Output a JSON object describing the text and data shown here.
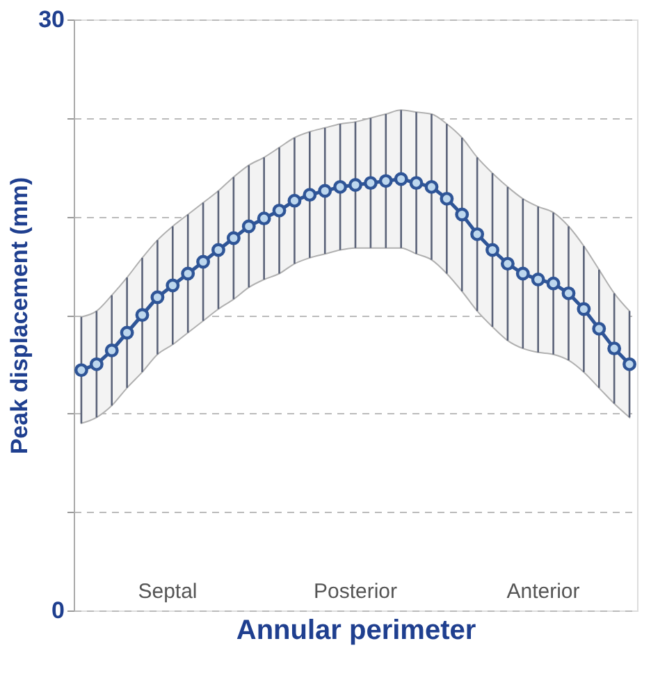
{
  "chart_data": {
    "type": "line",
    "xlabel": "Annular perimeter",
    "ylabel": "Peak displacement (mm)",
    "categories": [
      null,
      null,
      null,
      null,
      null,
      null,
      null,
      null,
      null,
      null,
      null,
      null,
      null,
      null,
      null,
      null,
      null,
      null,
      null,
      null,
      null,
      null,
      null,
      null,
      null,
      null,
      null,
      null,
      null,
      null,
      null,
      null,
      null,
      null,
      null,
      null,
      null
    ],
    "series": [
      {
        "color": "#2f5597",
        "values": [
          12.2,
          12.5,
          13.2,
          14.1,
          15.0,
          15.9,
          16.5,
          17.1,
          17.7,
          18.3,
          18.9,
          19.5,
          19.9,
          20.3,
          20.8,
          21.1,
          21.3,
          21.5,
          21.6,
          21.7,
          21.8,
          21.9,
          21.7,
          21.5,
          20.9,
          20.1,
          19.1,
          18.3,
          17.6,
          17.1,
          16.8,
          16.6,
          16.1,
          15.3,
          14.3,
          13.3,
          12.5
        ],
        "upper": [
          14.9,
          15.2,
          16.0,
          16.9,
          17.9,
          18.8,
          19.5,
          20.1,
          20.7,
          21.3,
          22.0,
          22.6,
          23.0,
          23.5,
          24.0,
          24.3,
          24.5,
          24.7,
          24.8,
          25.0,
          25.2,
          25.4,
          25.3,
          25.2,
          24.7,
          24.0,
          23.0,
          22.2,
          21.5,
          20.9,
          20.5,
          20.2,
          19.5,
          18.5,
          17.3,
          16.1,
          15.2
        ],
        "lower": [
          9.5,
          9.8,
          10.4,
          11.3,
          12.1,
          13.0,
          13.5,
          14.1,
          14.7,
          15.3,
          15.8,
          16.4,
          16.8,
          17.1,
          17.6,
          17.9,
          18.1,
          18.3,
          18.4,
          18.4,
          18.4,
          18.4,
          18.1,
          17.8,
          17.1,
          16.2,
          15.2,
          14.4,
          13.7,
          13.3,
          13.1,
          13.0,
          12.7,
          12.1,
          11.3,
          10.5,
          9.8
        ],
        "errors": [
          [
            9.5,
            14.9
          ],
          [
            9.8,
            15.2
          ],
          [
            10.4,
            16.0
          ],
          [
            11.3,
            16.9
          ],
          [
            12.1,
            17.9
          ],
          [
            13.0,
            18.8
          ],
          [
            13.5,
            19.5
          ],
          [
            14.1,
            20.1
          ],
          [
            14.7,
            20.7
          ],
          [
            15.3,
            21.3
          ],
          [
            15.8,
            22.0
          ],
          [
            16.4,
            22.6
          ],
          [
            16.8,
            23.0
          ],
          [
            17.1,
            23.5
          ],
          [
            17.6,
            24.0
          ],
          [
            17.9,
            24.3
          ],
          [
            18.1,
            24.5
          ],
          [
            18.3,
            24.7
          ],
          [
            18.4,
            24.8
          ],
          [
            18.4,
            25.0
          ],
          [
            18.4,
            25.2
          ],
          [
            18.4,
            25.4
          ],
          [
            18.1,
            25.3
          ],
          [
            17.8,
            25.2
          ],
          [
            17.1,
            24.7
          ],
          [
            16.2,
            24.0
          ],
          [
            15.2,
            23.0
          ],
          [
            14.4,
            22.2
          ],
          [
            13.7,
            21.5
          ],
          [
            13.3,
            20.9
          ],
          [
            13.1,
            20.5
          ],
          [
            13.0,
            20.2
          ],
          [
            12.7,
            19.5
          ],
          [
            12.1,
            18.5
          ],
          [
            11.3,
            17.3
          ],
          [
            10.5,
            16.1
          ],
          [
            9.8,
            15.2
          ]
        ]
      }
    ],
    "annotations": [
      "Septal",
      "Posterior",
      "Anterior"
    ],
    "ylim": [
      0,
      30
    ],
    "yticks": [
      0,
      {
        "value": 5,
        "label": null
      },
      {
        "value": 10,
        "label": null
      },
      {
        "value": 15,
        "label": null
      },
      {
        "value": 20,
        "label": null
      },
      {
        "value": 25,
        "label": null
      },
      30
    ],
    "grid": "y",
    "marker": "circle",
    "line_style": "solid",
    "tick_labels": "y",
    "legend": false
  }
}
